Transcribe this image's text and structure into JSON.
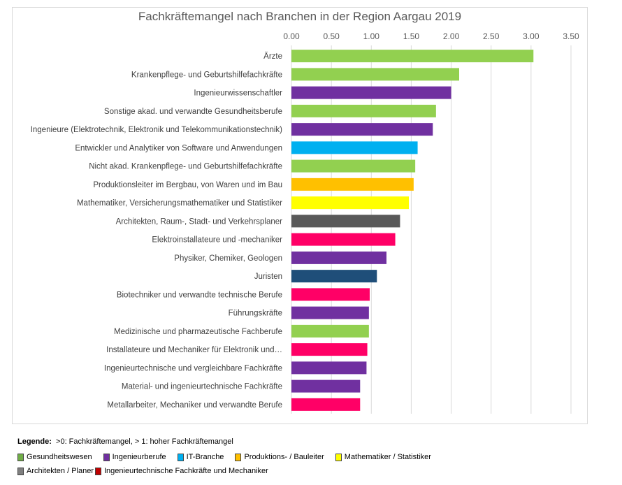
{
  "chart_data": {
    "type": "bar",
    "orientation": "horizontal",
    "title": "Fachkräftemangel nach Branchen in der Region Aargau 2019",
    "xlim": [
      0,
      3.5
    ],
    "xticks": [
      "0.00",
      "0.50",
      "1.00",
      "1.50",
      "2.00",
      "2.50",
      "3.00",
      "3.50"
    ],
    "tick_position": "top",
    "grid": true,
    "categories": [
      "Ärzte",
      "Krankenpflege- und Geburtshilfefachkräfte",
      "Ingenieurwissenschaftler",
      "Sonstige akad. und verwandte Gesundheitsberufe",
      "Ingenieure (Elektrotechnik, Elektronik und Telekommunikationstechnik)",
      "Entwickler und Analytiker von Software und Anwendungen",
      "Nicht akad. Krankenpflege- und Geburtshilfefachkräfte",
      "Produktionsleiter im Bergbau,  von Waren und im Bau",
      "Mathematiker, Versicherungsmathematiker und Statistiker",
      "Architekten, Raum-, Stadt- und Verkehrsplaner",
      "Elektroinstallateure und -mechaniker",
      "Physiker, Chemiker, Geologen",
      "Juristen",
      "Biotechniker und verwandte technische Berufe",
      "Führungskräfte",
      "Medizinische und pharmazeutische Fachberufe",
      "Installateure und Mechaniker für Elektronik und…",
      "Ingenieurtechnische und vergleichbare Fachkräfte",
      "Material- und ingenieurtechnische Fachkräfte",
      "Metallarbeiter, Mechaniker und verwandte Berufe"
    ],
    "values": [
      3.03,
      2.1,
      2.0,
      1.81,
      1.77,
      1.58,
      1.55,
      1.53,
      1.47,
      1.36,
      1.3,
      1.19,
      1.07,
      0.98,
      0.97,
      0.97,
      0.95,
      0.94,
      0.86,
      0.86
    ],
    "bar_colors": [
      "#92d050",
      "#92d050",
      "#7030a0",
      "#92d050",
      "#7030a0",
      "#00b0f0",
      "#92d050",
      "#ffc000",
      "#ffff00",
      "#595959",
      "#ff0066",
      "#7030a0",
      "#1f4e79",
      "#ff0066",
      "#7030a0",
      "#92d050",
      "#ff0066",
      "#7030a0",
      "#7030a0",
      "#ff0066"
    ]
  },
  "legend": {
    "heading": "Legende:",
    "note": ">0: Fachkräftemangel, > 1: hoher Fachkräftemangel",
    "items": [
      {
        "label": "Gesundheitswesen",
        "color": "#70ad47"
      },
      {
        "label": "Ingenieurberufe",
        "color": "#7030a0"
      },
      {
        "label": "IT-Branche",
        "color": "#00b0f0"
      },
      {
        "label": "Produktions- / Bauleiter",
        "color": "#ffc000"
      },
      {
        "label": "Mathematiker / Statistiker",
        "color": "#ffff00"
      },
      {
        "label": "Architekten / Planer",
        "color": "#7f7f7f"
      },
      {
        "label": "Ingenieurtechnische Fachkräfte und Mechaniker",
        "color": "#c00000"
      }
    ]
  }
}
